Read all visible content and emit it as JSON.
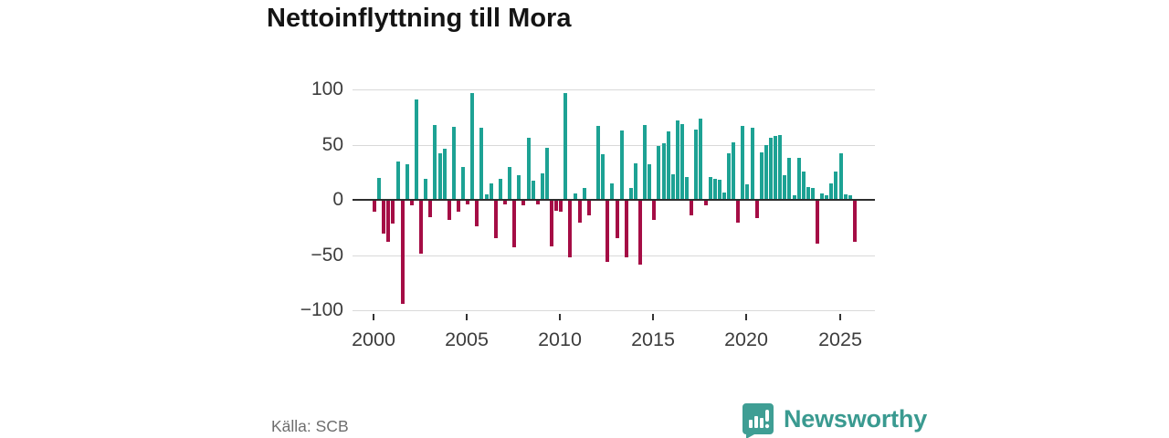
{
  "title": "Nettoinflyttning till Mora",
  "source": "Källa: SCB",
  "branding": {
    "name": "Newsworthy"
  },
  "colors": {
    "positive": "#1da294",
    "negative": "#a50d45",
    "grid": "#d9d9d9",
    "zero_line": "#2d2d2d",
    "axis_text": "#3d3d3d",
    "title_text": "#141414",
    "source_text": "#6e6e6e",
    "brand_teal": "#3a9a90"
  },
  "chart_data": {
    "type": "bar",
    "title": "Nettoinflyttning till Mora",
    "frequency": "quarterly",
    "start": "2000-Q1",
    "end": "2025-Q4",
    "ylim": [
      -100,
      100
    ],
    "grid": true,
    "y_ticks": [
      {
        "label": "100",
        "value": 100
      },
      {
        "label": "50",
        "value": 50
      },
      {
        "label": "0",
        "value": 0
      },
      {
        "label": "−50",
        "value": -50
      },
      {
        "label": "−100",
        "value": -100
      }
    ],
    "x_ticks": [
      {
        "label": "2000",
        "quarter_index": 0
      },
      {
        "label": "2005",
        "quarter_index": 20
      },
      {
        "label": "2010",
        "quarter_index": 40
      },
      {
        "label": "2015",
        "quarter_index": 60
      },
      {
        "label": "2020",
        "quarter_index": 80
      },
      {
        "label": "2025",
        "quarter_index": 100
      }
    ],
    "values": [
      -10,
      20,
      -30,
      -37,
      -21,
      35,
      -93,
      32,
      -4,
      91,
      -48,
      19,
      -15,
      68,
      42,
      46,
      -17,
      66,
      -10,
      30,
      -3,
      97,
      -23,
      65,
      5,
      15,
      -34,
      19,
      -3,
      30,
      -42,
      22,
      -4,
      56,
      17,
      -3,
      24,
      47,
      -41,
      -9,
      -10,
      97,
      -51,
      6,
      -20,
      11,
      -13,
      0,
      67,
      41,
      -55,
      15,
      -34,
      63,
      -51,
      11,
      33,
      -58,
      68,
      32,
      -17,
      49,
      51,
      62,
      23,
      72,
      69,
      21,
      -13,
      64,
      74,
      -4,
      21,
      19,
      18,
      7,
      42,
      52,
      -20,
      67,
      14,
      65,
      -16,
      43,
      50,
      56,
      58,
      59,
      22,
      38,
      4,
      38,
      26,
      12,
      11,
      -39,
      6,
      4,
      15,
      26,
      42,
      5,
      4,
      -37
    ]
  }
}
